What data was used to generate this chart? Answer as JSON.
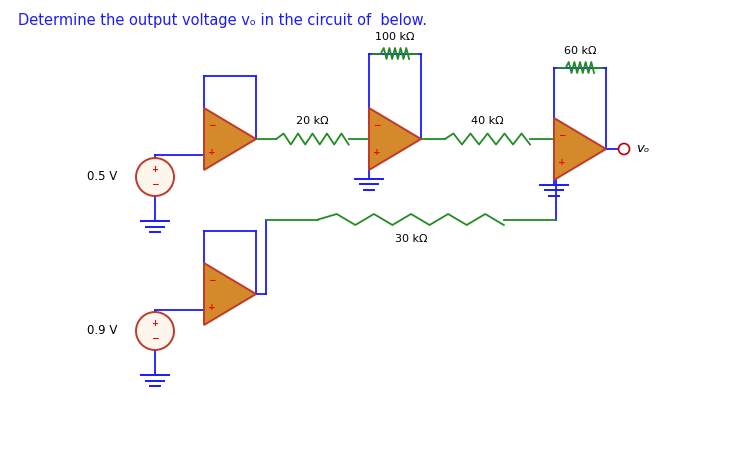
{
  "title": "Determine the output voltage vₒ in the circuit of  below.",
  "title_color": "#1a1aff",
  "bg_color": "#ffffff",
  "op_amp_fill": "#d4892a",
  "op_amp_edge": "#c0392b",
  "wire_color": "#1a1aff",
  "resistor_color": "#228B22",
  "labels": {
    "v05": "0.5 V",
    "v09": "0.9 V",
    "r20": "20 kΩ",
    "r100": "100 kΩ",
    "r40": "40 kΩ",
    "r60": "60 kΩ",
    "r30": "30 kΩ",
    "vo": "vₒ"
  }
}
